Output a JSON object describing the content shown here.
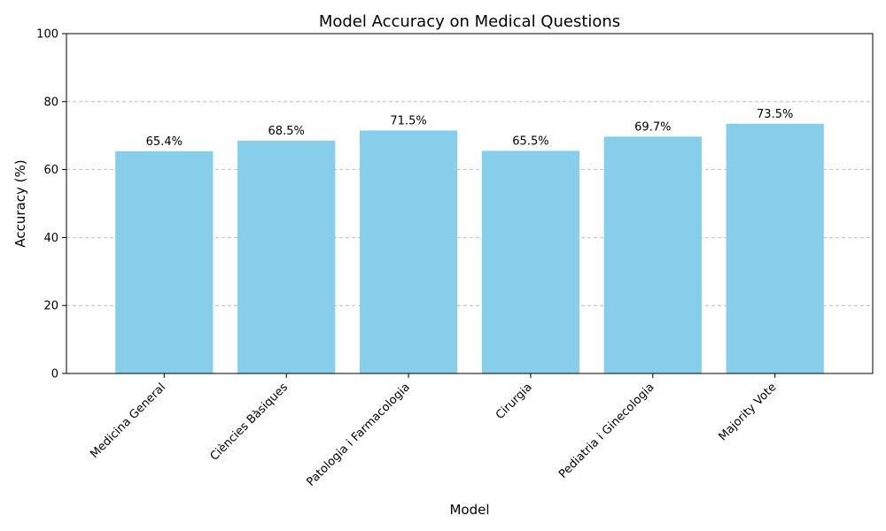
{
  "chart_data": {
    "type": "bar",
    "title": "Model Accuracy on Medical Questions",
    "xlabel": "Model",
    "ylabel": "Accuracy (%)",
    "categories": [
      "Medicina General",
      "Ciències Bàsiques",
      "Patologia i Farmacologia",
      "Cirurgia",
      "Pediatria i Ginecologia",
      "Majority Vote"
    ],
    "values": [
      65.4,
      68.5,
      71.5,
      65.5,
      69.7,
      73.5
    ],
    "data_labels": [
      "65.4%",
      "68.5%",
      "71.5%",
      "65.5%",
      "69.7%",
      "73.5%"
    ],
    "ylim": [
      0,
      100
    ],
    "yticks": [
      0,
      20,
      40,
      60,
      80,
      100
    ],
    "grid": "y-dashed",
    "bar_color": "#87ceeb"
  }
}
